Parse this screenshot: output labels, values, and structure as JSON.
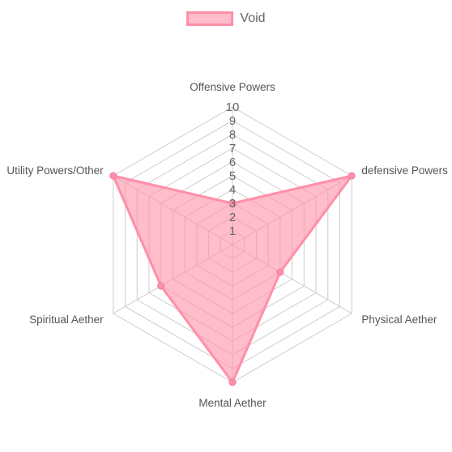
{
  "chart_data": {
    "type": "radar",
    "axes": [
      "Offensive Powers",
      "defensive Powers",
      "Physical Aether",
      "Mental Aether",
      "Spiritual Aether",
      "Utility Powers/Other"
    ],
    "ticks": [
      "1",
      "2",
      "3",
      "4",
      "5",
      "6",
      "7",
      "8",
      "9",
      "10"
    ],
    "rmin": 0,
    "rmax": 10,
    "legend_position": "top",
    "series": [
      {
        "name": "Void",
        "values": [
          3,
          10,
          4,
          10,
          6,
          10
        ],
        "color": "#ff8fa8"
      }
    ]
  }
}
